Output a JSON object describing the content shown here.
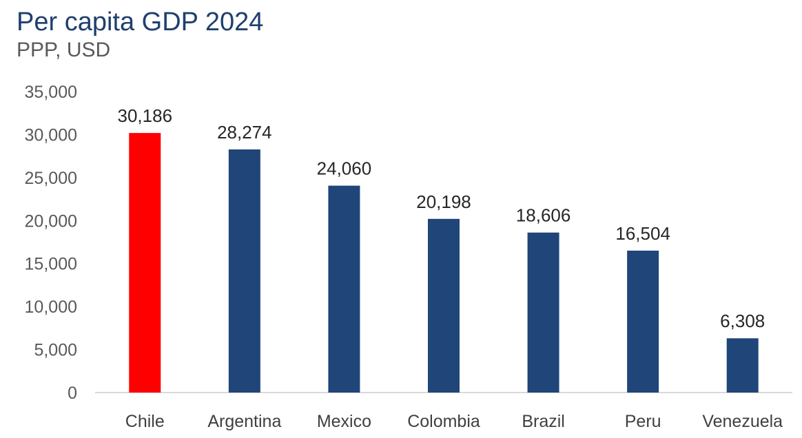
{
  "header": {
    "title": "Per capita GDP 2024",
    "subtitle": "PPP, USD"
  },
  "chart_data": {
    "type": "bar",
    "title": "Per capita GDP 2024",
    "subtitle": "PPP, USD",
    "categories": [
      "Chile",
      "Argentina",
      "Mexico",
      "Colombia",
      "Brazil",
      "Peru",
      "Venezuela"
    ],
    "values": [
      30186,
      28274,
      24060,
      20198,
      18606,
      16504,
      6308
    ],
    "data_labels": [
      "30,186",
      "28,274",
      "24,060",
      "20,198",
      "18,606",
      "16,504",
      "6,308"
    ],
    "bar_colors": [
      "#ff0000",
      "#1f4579",
      "#1f4579",
      "#1f4579",
      "#1f4579",
      "#1f4579",
      "#1f4579"
    ],
    "ylim": [
      0,
      35000
    ],
    "yticks": [
      0,
      5000,
      10000,
      15000,
      20000,
      25000,
      30000,
      35000
    ],
    "ytick_labels": [
      "0",
      "5,000",
      "10,000",
      "15,000",
      "20,000",
      "25,000",
      "30,000",
      "35,000"
    ],
    "xlabel": "",
    "ylabel": "",
    "grid": false,
    "legend": "none"
  }
}
